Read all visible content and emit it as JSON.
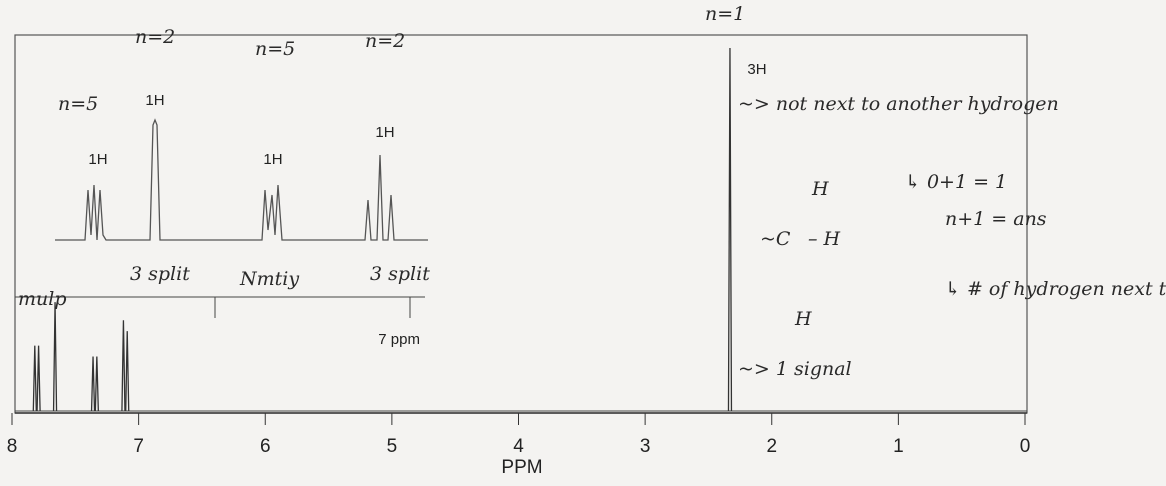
{
  "chart_data": {
    "type": "spectrum",
    "xlabel": "PPM",
    "xlim": [
      8,
      0
    ],
    "xticks": [
      8,
      7,
      6,
      5,
      4,
      3,
      2,
      1,
      0
    ],
    "x": [
      7.82,
      7.79,
      7.66,
      7.36,
      7.33,
      7.12,
      7.09,
      2.33
    ],
    "values": [
      18,
      18,
      30,
      15,
      15,
      25,
      22,
      100
    ],
    "color": "#333333",
    "peak_label": "3H",
    "inset": {
      "peak_labels": [
        "1H",
        "1H",
        "1H",
        "1H"
      ],
      "scale_label": "7 ppm"
    },
    "annotations": [
      "n=5",
      "n=2",
      "n=5",
      "n=2",
      "n=1",
      "~> not next to another hydrogen",
      "↳ 0+1 = 1",
      "n+1 = ans",
      "↳ # of hydrogen next too",
      "~> 1 signal",
      "mulp",
      "3 split",
      "Nmtiy",
      "3 split"
    ],
    "structure": [
      "H",
      "~C",
      "– H",
      "H"
    ]
  }
}
